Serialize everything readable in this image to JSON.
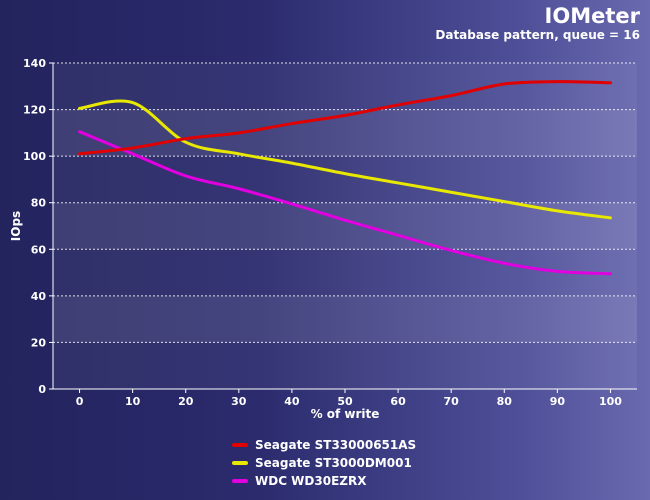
{
  "chart_data": {
    "type": "line",
    "title": "IOMeter",
    "subtitle": "Database pattern, queue = 16",
    "xlabel": "% of write",
    "ylabel": "IOps",
    "x": [
      0,
      10,
      20,
      30,
      40,
      50,
      60,
      70,
      80,
      90,
      100
    ],
    "xlim": [
      -5,
      105
    ],
    "ylim": [
      0,
      140
    ],
    "yticks": [
      0,
      20,
      40,
      60,
      80,
      100,
      120,
      140
    ],
    "grid": true,
    "legend_position": "bottom",
    "series": [
      {
        "name": "Seagate ST33000651AS",
        "color": "#e00000",
        "values": [
          101,
          103.5,
          107.5,
          110,
          114,
          117.5,
          122,
          126,
          131,
          132,
          131.5
        ]
      },
      {
        "name": "Seagate ST3000DM001",
        "color": "#e8e800",
        "values": [
          120.5,
          123,
          106,
          101,
          97,
          92.5,
          88.5,
          84.5,
          80.5,
          76.5,
          73.5
        ]
      },
      {
        "name": "WDC WD30EZRX",
        "color": "#e000e0",
        "values": [
          110.5,
          101,
          91.5,
          86,
          79.5,
          72.5,
          66,
          59.5,
          54,
          50.5,
          49.5
        ]
      }
    ]
  }
}
